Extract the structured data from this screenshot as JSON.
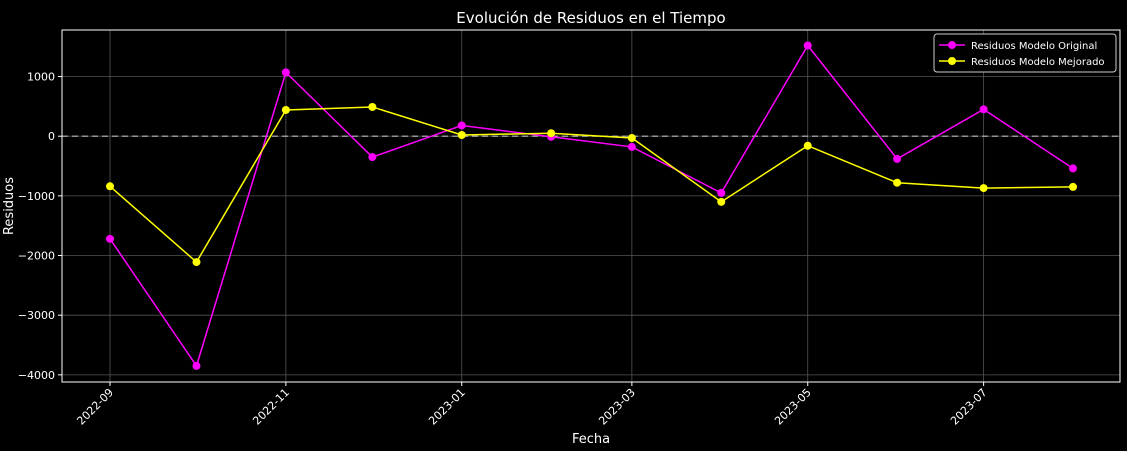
{
  "chart_data": {
    "type": "line",
    "title": "Evolución de Residuos en el Tiempo",
    "xlabel": "Fecha",
    "ylabel": "Residuos",
    "x": [
      "2022-09-01",
      "2022-10-01",
      "2022-11-01",
      "2022-12-01",
      "2023-01-01",
      "2023-02-01",
      "2023-03-01",
      "2023-04-01",
      "2023-05-01",
      "2023-06-01",
      "2023-07-01",
      "2023-08-01"
    ],
    "x_ticks": [
      "2022-09",
      "2022-11",
      "2023-01",
      "2023-03",
      "2023-05",
      "2023-07"
    ],
    "y_ticks": [
      1000,
      0,
      -1000,
      -2000,
      -3000,
      -4000
    ],
    "ylim": [
      -4120,
      1780
    ],
    "grid": true,
    "legend_position": "top-right",
    "reference_line": {
      "y": 0,
      "style": "dashed",
      "color": "#bbbbbb"
    },
    "series": [
      {
        "name": "Residuos Modelo Original",
        "color": "#ff00ff",
        "values": [
          -1720,
          -3850,
          1070,
          -350,
          180,
          -10,
          -180,
          -950,
          1520,
          -380,
          450,
          -540
        ]
      },
      {
        "name": "Residuos Modelo Mejorado",
        "color": "#ffff00",
        "values": [
          -840,
          -2110,
          440,
          490,
          20,
          50,
          -30,
          -1100,
          -160,
          -780,
          -870,
          -850
        ]
      }
    ]
  },
  "colors": {
    "background": "#000000",
    "axes": "#ffffff",
    "grid": "#555555",
    "text": "#ffffff"
  }
}
